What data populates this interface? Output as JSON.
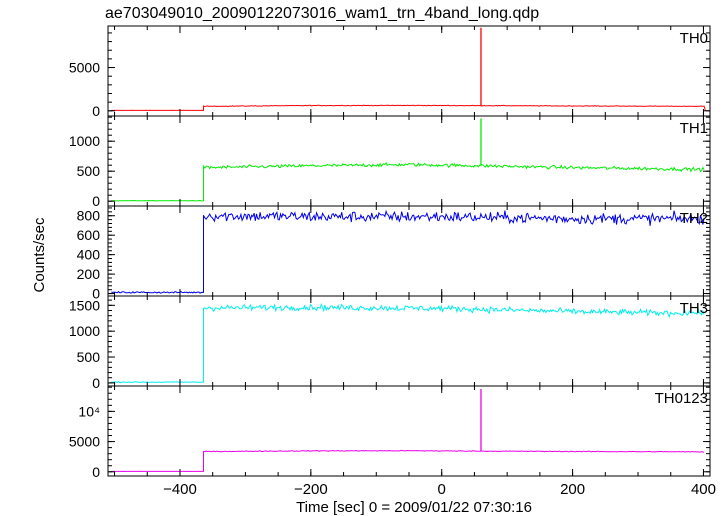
{
  "title": "ae703049010_20090122073016_wam1_trn_4band_long.qdp",
  "chart_data": {
    "type": "line",
    "xlabel": "Time [sec] 0 = 2009/01/22 07:30:16",
    "ylabel": "Counts/sec",
    "xlim": [
      -510,
      410
    ],
    "x_ticks": [
      {
        "value": -400,
        "label": "−400"
      },
      {
        "value": -200,
        "label": "−200"
      },
      {
        "value": 0,
        "label": "0"
      },
      {
        "value": 200,
        "label": "200"
      },
      {
        "value": 400,
        "label": "400"
      }
    ],
    "shared_x": true,
    "panels": [
      {
        "name": "TH0",
        "color": "#ff0000",
        "ylim": [
          -600,
          9800
        ],
        "y_ticks": [
          {
            "value": 0,
            "label": "0"
          },
          {
            "value": 5000,
            "label": "5000"
          }
        ],
        "series": {
          "x_range": [
            -505,
            402
          ],
          "pre_step_level": 50,
          "step_at": -364,
          "noise": 25,
          "post_step": [
            [
              -364,
              520
            ],
            [
              -200,
              610
            ],
            [
              -50,
              620
            ],
            [
              60,
              600
            ],
            [
              200,
              560
            ],
            [
              400,
              520
            ]
          ],
          "spikes": [
            {
              "x": 60,
              "y": 9600
            }
          ],
          "end_dip": {
            "x": 403,
            "y": 20
          }
        }
      },
      {
        "name": "TH1",
        "color": "#00ee00",
        "ylim": [
          -80,
          1420
        ],
        "y_ticks": [
          {
            "value": 0,
            "label": "0"
          },
          {
            "value": 500,
            "label": "500"
          },
          {
            "value": 1000,
            "label": "1000"
          }
        ],
        "series": {
          "x_range": [
            -505,
            402
          ],
          "pre_step_level": 8,
          "step_at": -364,
          "noise": 20,
          "post_step": [
            [
              -364,
              560
            ],
            [
              -200,
              590
            ],
            [
              -50,
              610
            ],
            [
              60,
              590
            ],
            [
              200,
              560
            ],
            [
              400,
              530
            ]
          ],
          "spikes": [
            {
              "x": 60,
              "y": 1380
            }
          ]
        }
      },
      {
        "name": "TH2",
        "color": "#0000ee",
        "ylim": [
          -25,
          900
        ],
        "y_ticks": [
          {
            "value": 0,
            "label": "0"
          },
          {
            "value": 200,
            "label": "200"
          },
          {
            "value": 400,
            "label": "400"
          },
          {
            "value": 600,
            "label": "600"
          },
          {
            "value": 800,
            "label": "800"
          }
        ],
        "series": {
          "x_range": [
            -505,
            402
          ],
          "pre_step_level": 12,
          "step_at": -364,
          "noise": 40,
          "post_step": [
            [
              -364,
              800
            ],
            [
              -200,
              790
            ],
            [
              0,
              790
            ],
            [
              200,
              770
            ],
            [
              400,
              770
            ]
          ],
          "spikes": []
        }
      },
      {
        "name": "TH3",
        "color": "#00eeee",
        "ylim": [
          -60,
          1680
        ],
        "y_ticks": [
          {
            "value": 0,
            "label": "0"
          },
          {
            "value": 500,
            "label": "500"
          },
          {
            "value": 1000,
            "label": "1000"
          },
          {
            "value": 1500,
            "label": "1500"
          }
        ],
        "series": {
          "x_range": [
            -505,
            402
          ],
          "pre_step_level": 15,
          "step_at": -364,
          "noise": 40,
          "post_step": [
            [
              -364,
              1450
            ],
            [
              -200,
              1460
            ],
            [
              0,
              1440
            ],
            [
              200,
              1380
            ],
            [
              350,
              1350
            ],
            [
              400,
              1360
            ]
          ],
          "spikes": []
        }
      },
      {
        "name": "TH0123",
        "color": "#ee00ee",
        "ylim": [
          -700,
          14200
        ],
        "y_ticks": [
          {
            "value": 0,
            "label": "0"
          },
          {
            "value": 5000,
            "label": "5000"
          },
          {
            "value": 10000,
            "label": "10⁴"
          }
        ],
        "series": {
          "x_range": [
            -505,
            402
          ],
          "pre_step_level": 60,
          "step_at": -364,
          "noise": 45,
          "post_step": [
            [
              -364,
              3350
            ],
            [
              -200,
              3460
            ],
            [
              -50,
              3480
            ],
            [
              60,
              3420
            ],
            [
              200,
              3360
            ],
            [
              400,
              3300
            ]
          ],
          "spikes": [
            {
              "x": 60,
              "y": 13700
            }
          ]
        }
      }
    ]
  }
}
